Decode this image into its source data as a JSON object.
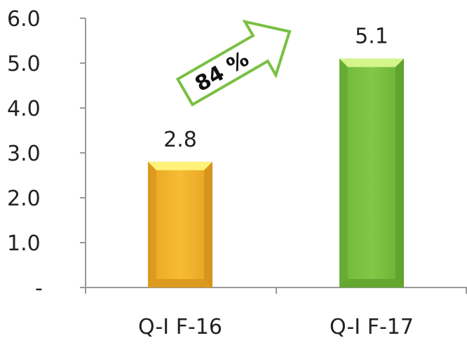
{
  "chart_data": {
    "type": "bar",
    "categories": [
      "Q-I  F-16",
      "Q-I  F-17"
    ],
    "values": [
      2.8,
      5.1
    ],
    "value_labels": [
      "2.8",
      "5.1"
    ],
    "ylim": [
      0,
      6
    ],
    "y_ticks": [
      0,
      1,
      2,
      3,
      4,
      5,
      6
    ],
    "y_tick_labels": [
      "-",
      "1.0",
      "2.0",
      "3.0",
      "4.0",
      "5.0",
      "6.0"
    ],
    "grid": false,
    "annotation": {
      "text": "84 %",
      "shape": "arrow",
      "direction": "up-right"
    },
    "colors": [
      "#F5B52E",
      "#7DC441"
    ],
    "bar_edge_colors": [
      "#FFF27A",
      "#D4F58B"
    ],
    "arrow_color": "#79C043"
  }
}
